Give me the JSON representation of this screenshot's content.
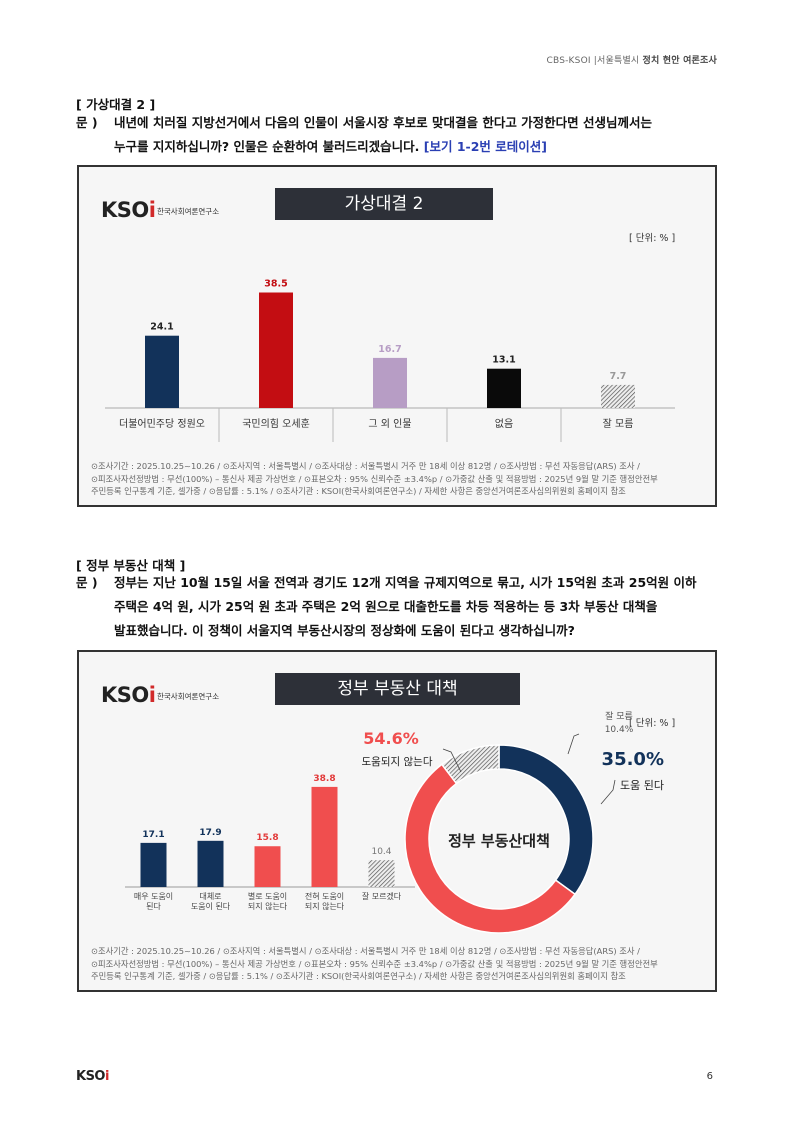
{
  "header": {
    "org": "CBS-KSOI",
    "region": "서울특별시",
    "topic": "정치 현안 여론조사"
  },
  "section1": {
    "heading": "[ 가상대결 2 ]",
    "q_label": "문 )",
    "q_line1": "내년에 치러질 지방선거에서 다음의 인물이 서울시장 후보로 맞대결을 한다고 가정한다면 선생님께서는",
    "q_line2": "누구를 지지하십니까? 인물은 순환하여 불러드리겠습니다.",
    "q_rotation": "[보기 1-2번 로테이션]",
    "logo_text_k": "KSO",
    "logo_text_i": "i",
    "logo_sub": "한국사회여론연구소",
    "chart_title": "가상대결 2",
    "unit": "[ 단위: % ]",
    "note_line1": "⊙조사기간 : 2025.10.25~10.26 / ⊙조사지역 : 서울특별시 / ⊙조사대상 : 서울특별시 거주 만 18세 이상 812명 / ⊙조사방법 : 무선 자동응답(ARS) 조사 /",
    "note_line2": "⊙피조사자선정방법 : 무선(100%) – 통신사 제공 가상번호 / ⊙표본오차 : 95% 신뢰수준 ±3.4%p / ⊙가중값 산출 및 적용방법 : 2025년 9월 말 기준 행정안전부",
    "note_line3": "주민등록 인구통계 기준, 셀가중 / ⊙응답률 : 5.1% / ⊙조사기관 : KSOI(한국사회여론연구소) / 자세한 사항은 중앙선거여론조사심의위원회 홈페이지 참조"
  },
  "section2": {
    "heading": "[ 정부 부동산 대책 ]",
    "q_label": "문 )",
    "q_line1": "정부는 지난 10월 15일 서울 전역과 경기도 12개 지역을 규제지역으로 묶고, 시가 15억원 초과 25억원 이하",
    "q_line2": "주택은 4억 원, 시가 25억 원 초과 주택은 2억 원으로 대출한도를 차등 적용하는 등 3차 부동산 대책을",
    "q_line3": "발표했습니다. 이 정책이 서울지역 부동산시장의 정상화에 도움이 된다고 생각하십니까?",
    "logo_text_k": "KSO",
    "logo_text_i": "i",
    "logo_sub": "한국사회여론연구소",
    "chart_title": "정부 부동산 대책",
    "unit": "[ 단위: % ]",
    "note_line1": "⊙조사기간 : 2025.10.25~10.26 / ⊙조사지역 : 서울특별시 / ⊙조사대상 : 서울특별시 거주 만 18세 이상 812명 / ⊙조사방법 : 무선 자동응답(ARS) 조사 /",
    "note_line2": "⊙피조사자선정방법 : 무선(100%) – 통신사 제공 가상번호 / ⊙표본오차 : 95% 신뢰수준 ±3.4%p / ⊙가중값 산출 및 적용방법 : 2025년 9월 말 기준 행정안전부",
    "note_line3": "주민등록 인구통계 기준, 셀가중 / ⊙응답률 : 5.1% / ⊙조사기관 : KSOI(한국사회여론연구소) / 자세한 사항은 중앙선거여론조사심의위원회 홈페이지 참조"
  },
  "chart_data": [
    {
      "type": "bar",
      "title": "가상대결 2",
      "unit": "%",
      "categories": [
        "더불어민주당 정원오",
        "국민의힘 오세훈",
        "그 외 인물",
        "없음",
        "잘 모름"
      ],
      "values": [
        24.1,
        38.5,
        16.7,
        13.1,
        7.7
      ],
      "value_labels": [
        "24.1",
        "38.5",
        "16.7",
        "13.1",
        "7.7"
      ],
      "colors": [
        "#12325a",
        "#c30d12",
        "#b79dc5",
        "#0a0a0a",
        "hatch"
      ],
      "label_colors": [
        "#222222",
        "#c30d12",
        "#b79dc5",
        "#222222",
        "#999999"
      ],
      "ylim": [
        0,
        40
      ]
    },
    {
      "type": "bar",
      "title": "정부 부동산 대책",
      "unit": "%",
      "categories": [
        [
          "매우 도움이",
          "된다"
        ],
        [
          "대체로",
          "도움이 된다"
        ],
        [
          "별로 도움이",
          "되지 않는다"
        ],
        [
          "전혀 도움이",
          "되지 않는다"
        ],
        [
          "잘 모르겠다"
        ]
      ],
      "values": [
        17.1,
        17.9,
        15.8,
        38.8,
        10.4
      ],
      "value_labels": [
        "17.1",
        "17.9",
        "15.8",
        "38.8",
        "10.4"
      ],
      "colors": [
        "#12325a",
        "#12325a",
        "#f04e4e",
        "#f04e4e",
        "hatch"
      ],
      "label_colors": [
        "#12325a",
        "#12325a",
        "#e23b3b",
        "#e23b3b",
        "#777777"
      ],
      "ylim": [
        0,
        40
      ]
    },
    {
      "type": "pie",
      "title": "정부 부동산 대책",
      "center_label": "정부 부동산대책",
      "slices": [
        {
          "name": "도움 된다",
          "value": 35.0,
          "label": "35.0%",
          "color": "#12325a"
        },
        {
          "name": "도움되지 않는다",
          "value": 54.6,
          "label": "54.6%",
          "color": "#f04e4e"
        },
        {
          "name": "잘 모름",
          "value": 10.4,
          "label": "10.4%",
          "color": "hatch"
        }
      ]
    }
  ],
  "footer": {
    "logo_k": "KSO",
    "logo_i": "i",
    "page": "6"
  }
}
